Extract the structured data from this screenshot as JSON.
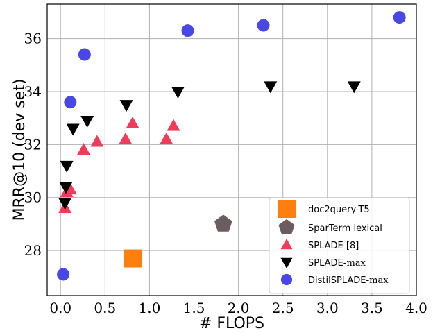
{
  "chart_data": {
    "type": "scatter",
    "title": "",
    "xlabel": "# FLOPS",
    "ylabel": "MRR@10 (dev set)",
    "xlim": [
      -0.15,
      4.0
    ],
    "ylim": [
      26.3,
      37.3
    ],
    "xticks": [
      "0.0",
      "0.5",
      "1.0",
      "1.5",
      "2.0",
      "2.5",
      "3.0",
      "3.5",
      "4.0"
    ],
    "xtick_values": [
      0.0,
      0.5,
      1.0,
      1.5,
      2.0,
      2.5,
      3.0,
      3.5,
      4.0
    ],
    "yticks": [
      "28",
      "30",
      "32",
      "34",
      "36"
    ],
    "ytick_values": [
      28,
      30,
      32,
      34,
      36
    ],
    "grid": true,
    "legend_position": "lower-right",
    "series": [
      {
        "name": "doc2query-T5",
        "marker": "square",
        "color": "#ff7f0e",
        "points": [
          {
            "x": 0.81,
            "y": 27.7
          }
        ]
      },
      {
        "name": "SparTerm lexical",
        "marker": "pentagon",
        "color": "#6b5d5d",
        "points": [
          {
            "x": 1.83,
            "y": 29.0
          }
        ]
      },
      {
        "name": "SPLADE [8]",
        "marker": "triangle-up",
        "color": "#f03c5a",
        "points": [
          {
            "x": 0.05,
            "y": 29.6
          },
          {
            "x": 0.07,
            "y": 30.2
          },
          {
            "x": 0.11,
            "y": 30.3
          },
          {
            "x": 0.26,
            "y": 31.8
          },
          {
            "x": 0.41,
            "y": 32.1
          },
          {
            "x": 0.73,
            "y": 32.2
          },
          {
            "x": 0.81,
            "y": 32.8
          },
          {
            "x": 1.19,
            "y": 32.2
          },
          {
            "x": 1.27,
            "y": 32.7
          }
        ]
      },
      {
        "name": "SPLADE-max",
        "marker": "triangle-down",
        "color": "#000000",
        "points": [
          {
            "x": 0.05,
            "y": 29.8
          },
          {
            "x": 0.06,
            "y": 30.4
          },
          {
            "x": 0.07,
            "y": 31.2
          },
          {
            "x": 0.14,
            "y": 32.6
          },
          {
            "x": 0.3,
            "y": 32.9
          },
          {
            "x": 0.74,
            "y": 33.5
          },
          {
            "x": 1.32,
            "y": 34.0
          },
          {
            "x": 2.36,
            "y": 34.2
          },
          {
            "x": 3.3,
            "y": 34.2
          }
        ]
      },
      {
        "name": "DistilSPLADE-max",
        "marker": "circle",
        "color": "#4a48e4",
        "points": [
          {
            "x": 0.03,
            "y": 27.1
          },
          {
            "x": 0.11,
            "y": 33.6
          },
          {
            "x": 0.27,
            "y": 35.4
          },
          {
            "x": 1.43,
            "y": 36.3
          },
          {
            "x": 2.28,
            "y": 36.5
          },
          {
            "x": 3.81,
            "y": 36.8
          }
        ]
      }
    ],
    "legend_labels": {
      "doc2query": "doc2query-T5",
      "sparterm": "SparTerm lexical",
      "splade": "SPLADE [8]",
      "splade_max_prefix": "SPLADE-",
      "splade_max_suffix": "max",
      "distil_prefix": "DistilSPLADE-",
      "distil_suffix": "max"
    }
  }
}
